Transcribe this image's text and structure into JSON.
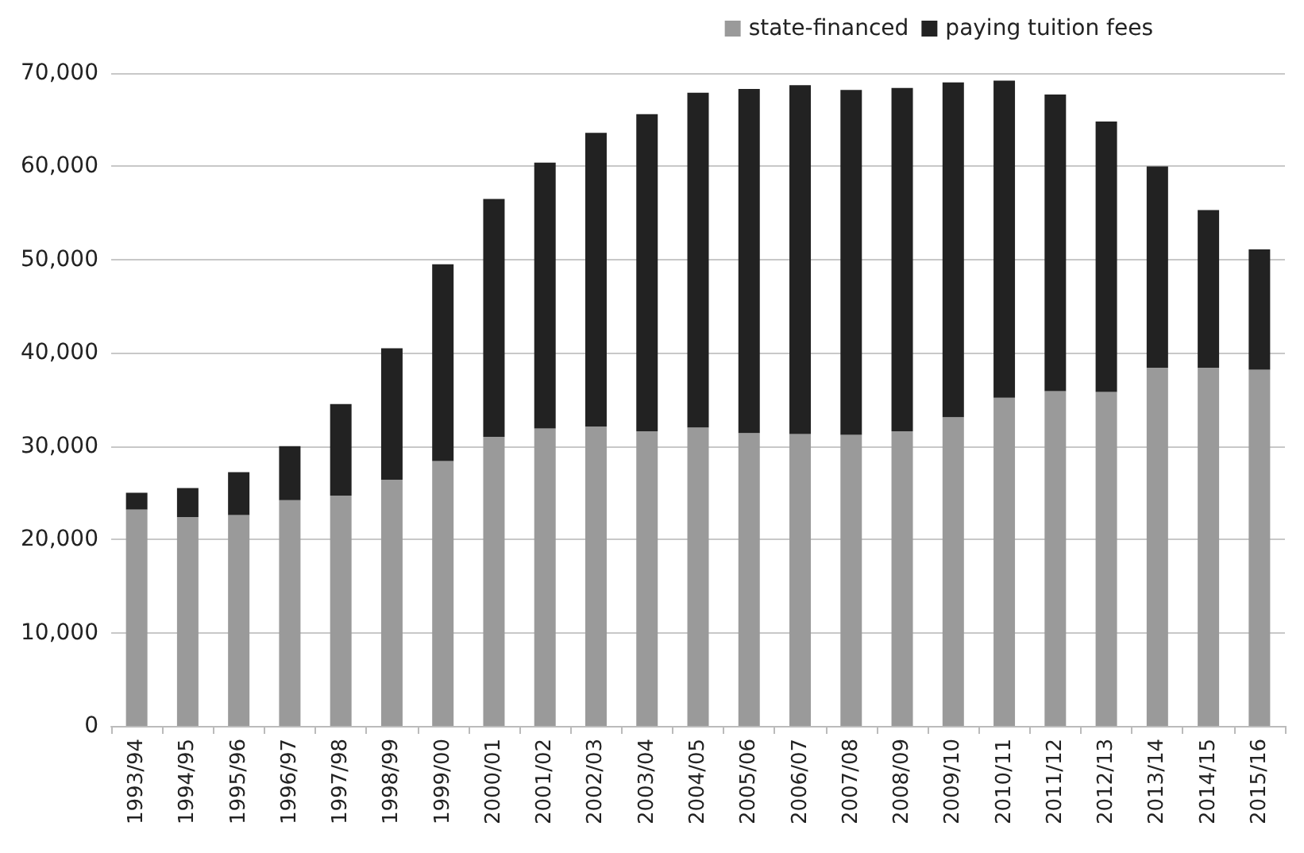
{
  "chart_data": {
    "type": "bar",
    "stacked": true,
    "categories": [
      "1993/94",
      "1994/95",
      "1995/96",
      "1996/97",
      "1997/98",
      "1998/99",
      "1999/00",
      "2000/01",
      "2001/02",
      "2002/03",
      "2003/04",
      "2004/05",
      "2005/06",
      "2006/07",
      "2007/08",
      "2008/09",
      "2009/10",
      "2010/11",
      "2011/12",
      "2012/13",
      "2013/14",
      "2014/15",
      "2015/16"
    ],
    "series": [
      {
        "name": "state-financed",
        "color": "#9a9a9a",
        "values": [
          23200,
          22400,
          22600,
          24200,
          24700,
          26400,
          28400,
          31000,
          31900,
          32100,
          31600,
          32000,
          31400,
          31300,
          31200,
          31600,
          33100,
          35200,
          35900,
          35800,
          38400,
          38400,
          38200
        ]
      },
      {
        "name": "paying tuition fees",
        "color": "#222222",
        "values": [
          1800,
          3100,
          4600,
          5800,
          9800,
          14100,
          21100,
          25500,
          28500,
          31500,
          34000,
          35900,
          36900,
          37400,
          37000,
          36800,
          35900,
          34000,
          31800,
          29000,
          21600,
          16900,
          12900
        ]
      }
    ],
    "ylim": [
      0,
      70000
    ],
    "yticks": [
      {
        "value": 0,
        "label": "0"
      },
      {
        "value": 10000,
        "label": "10,000"
      },
      {
        "value": 20000,
        "label": "20,000"
      },
      {
        "value": 30000,
        "label": "30,000"
      },
      {
        "value": 40000,
        "label": "40,000"
      },
      {
        "value": 50000,
        "label": "50,000"
      },
      {
        "value": 60000,
        "label": "60,000"
      },
      {
        "value": 70000,
        "label": "70,000"
      }
    ],
    "grid": "y",
    "legend": "top right"
  }
}
